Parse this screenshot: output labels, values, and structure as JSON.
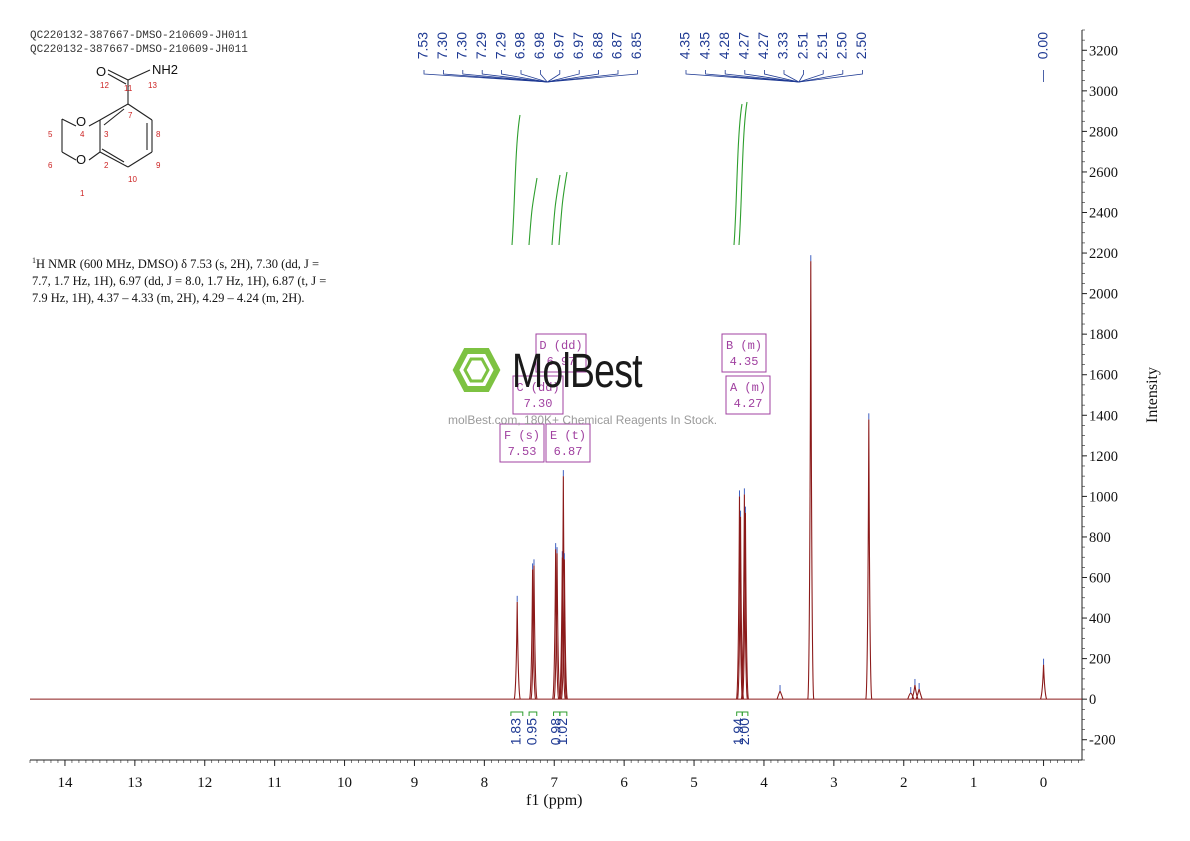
{
  "header": {
    "line1": "QC220132-387667-DMSO-210609-JH011",
    "line2": "QC220132-387667-DMSO-210609-JH011"
  },
  "description": {
    "nucleus_sup": "1",
    "text": "H NMR (600 MHz, DMSO) δ 7.53 (s, 2H), 7.30 (dd, J = 7.7, 1.7 Hz, 1H), 6.97 (dd, J = 8.0, 1.7 Hz, 1H), 6.87 (t, J = 7.9 Hz, 1H), 4.37 – 4.33 (m, 2H), 4.29 – 4.24 (m, 2H)."
  },
  "watermark": {
    "brand": "MolBest",
    "tagline": "molBest.com, 180K+ Chemical Reagents In Stock."
  },
  "structure": {
    "atom_labels": [
      "O",
      "NH2",
      "O",
      "O",
      "12",
      "11",
      "13",
      "4",
      "7",
      "3",
      "8",
      "5",
      "6",
      "2",
      "9",
      "10",
      "1"
    ]
  },
  "colors": {
    "spectrum": "#8b1a1a",
    "peak_label": "#1f3a93",
    "integral": "#2e9e2e",
    "multiplet_box": "#a040a0",
    "axis": "#222222",
    "structure_numbers": "#cc2222"
  },
  "chart_data": {
    "type": "line",
    "title": "",
    "xlabel": "f1 (ppm)",
    "ylabel": "Intensity",
    "xlim": [
      14.5,
      -0.55
    ],
    "ylim": [
      -300,
      3300
    ],
    "x_ticks": [
      14,
      13,
      12,
      11,
      10,
      9,
      8,
      7,
      6,
      5,
      4,
      3,
      2,
      1,
      0
    ],
    "y_ticks": [
      -200,
      0,
      200,
      400,
      600,
      800,
      1000,
      1200,
      1400,
      1600,
      1800,
      2000,
      2200,
      2400,
      2600,
      2800,
      3000,
      3200
    ],
    "peaks": [
      {
        "ppm": 7.53,
        "height": 480
      },
      {
        "ppm": 7.31,
        "height": 640
      },
      {
        "ppm": 7.29,
        "height": 660
      },
      {
        "ppm": 6.98,
        "height": 740
      },
      {
        "ppm": 6.96,
        "height": 720
      },
      {
        "ppm": 6.885,
        "height": 700
      },
      {
        "ppm": 6.87,
        "height": 1100
      },
      {
        "ppm": 6.855,
        "height": 690
      },
      {
        "ppm": 4.35,
        "height": 1000
      },
      {
        "ppm": 4.335,
        "height": 900
      },
      {
        "ppm": 4.28,
        "height": 1010
      },
      {
        "ppm": 4.265,
        "height": 920
      },
      {
        "ppm": 3.33,
        "height": 2160
      },
      {
        "ppm": 3.77,
        "height": 40
      },
      {
        "ppm": 2.5,
        "height": 1380
      },
      {
        "ppm": 1.9,
        "height": 30
      },
      {
        "ppm": 1.84,
        "height": 70
      },
      {
        "ppm": 1.78,
        "height": 50
      },
      {
        "ppm": 0.0,
        "height": 170
      }
    ],
    "peak_labels_group1": [
      "7.53",
      "7.30",
      "7.30",
      "7.29",
      "7.29",
      "6.98",
      "6.98",
      "6.97",
      "6.97",
      "6.88",
      "6.87",
      "6.85"
    ],
    "peak_labels_group2": [
      "4.35",
      "4.35",
      "4.28",
      "4.27",
      "4.27",
      "3.33",
      "2.51",
      "2.51",
      "2.50",
      "2.50"
    ],
    "peak_label_tms": "0.00",
    "integrals": [
      {
        "ppm_from": 7.62,
        "ppm_to": 7.45,
        "value": "1.83"
      },
      {
        "ppm_from": 7.36,
        "ppm_to": 7.25,
        "value": "0.95"
      },
      {
        "ppm_from": 7.01,
        "ppm_to": 6.92,
        "value": "0.98"
      },
      {
        "ppm_from": 6.92,
        "ppm_to": 6.82,
        "value": "1.02"
      },
      {
        "ppm_from": 4.39,
        "ppm_to": 4.31,
        "value": "1.94"
      },
      {
        "ppm_from": 4.31,
        "ppm_to": 4.23,
        "value": "2.00"
      }
    ],
    "multiplets": [
      {
        "label": "D (dd)",
        "shift": "6.97"
      },
      {
        "label": "C (dd)",
        "shift": "7.30"
      },
      {
        "label": "F (s)",
        "shift": "7.53"
      },
      {
        "label": "E (t)",
        "shift": "6.87"
      },
      {
        "label": "B (m)",
        "shift": "4.35"
      },
      {
        "label": "A (m)",
        "shift": "4.27"
      }
    ]
  }
}
